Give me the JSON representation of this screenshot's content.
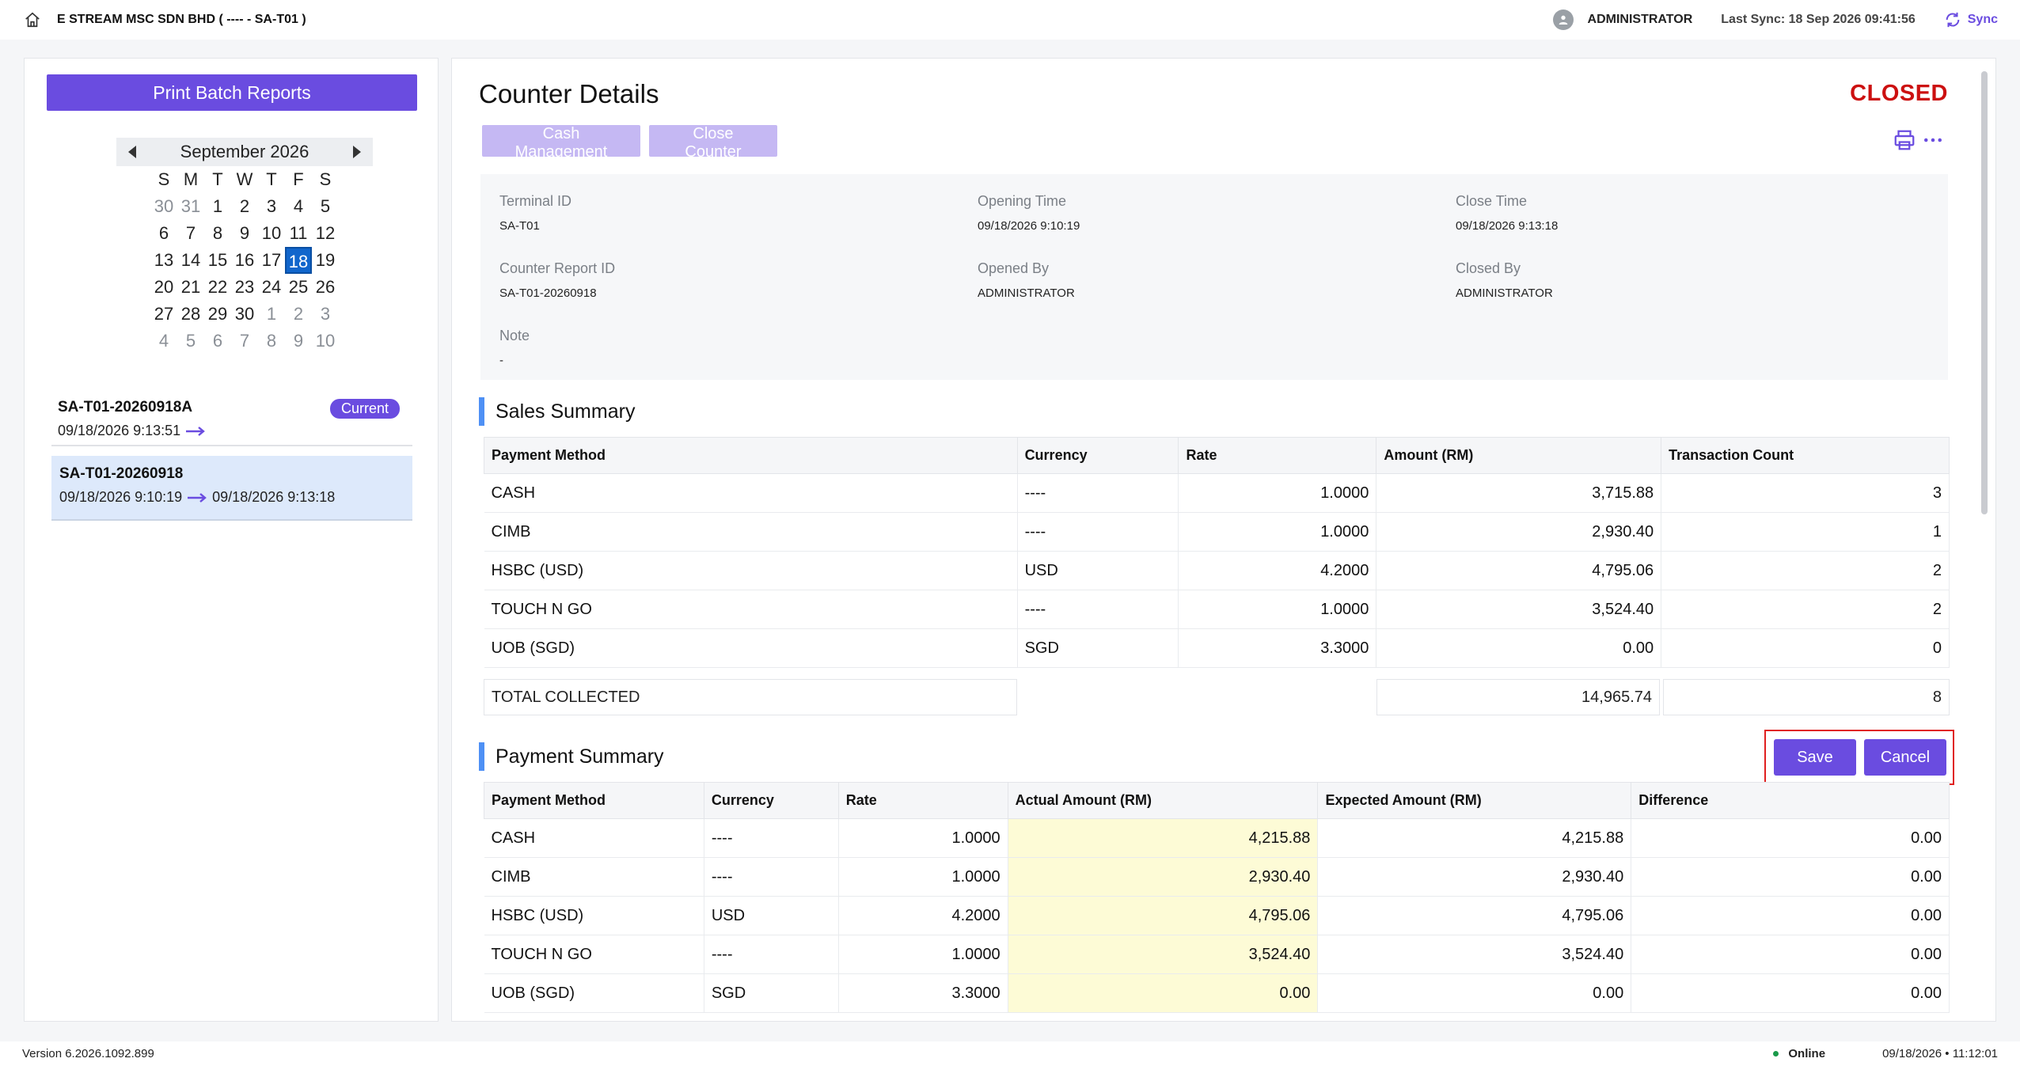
{
  "header": {
    "company": "E STREAM MSC SDN BHD ( ---- - SA-T01 )",
    "user": "ADMINISTRATOR",
    "last_sync": "Last Sync: 18 Sep 2026 09:41:56",
    "sync_label": "Sync"
  },
  "sidebar": {
    "print_batch_label": "Print Batch Reports",
    "calendar": {
      "month": "September 2026",
      "weekdays": [
        "S",
        "M",
        "T",
        "W",
        "T",
        "F",
        "S"
      ],
      "days": [
        [
          "30",
          "31",
          "1",
          "2",
          "3",
          "4",
          "5"
        ],
        [
          "6",
          "7",
          "8",
          "9",
          "10",
          "11",
          "12"
        ],
        [
          "13",
          "14",
          "15",
          "16",
          "17",
          "18",
          "19"
        ],
        [
          "20",
          "21",
          "22",
          "23",
          "24",
          "25",
          "26"
        ],
        [
          "27",
          "28",
          "29",
          "30",
          "1",
          "2",
          "3"
        ],
        [
          "4",
          "5",
          "6",
          "7",
          "8",
          "9",
          "10"
        ]
      ],
      "selected_day": "18"
    },
    "reports": [
      {
        "id": "SA-T01-20260918A",
        "start": "09/18/2026 9:13:51",
        "end": "",
        "badge": "Current"
      },
      {
        "id": "SA-T01-20260918",
        "start": "09/18/2026 9:10:19",
        "end": "09/18/2026 9:13:18",
        "badge": ""
      }
    ]
  },
  "main": {
    "title": "Counter Details",
    "status": "CLOSED",
    "cash_mgmt_label": "Cash Management",
    "close_counter_label": "Close Counter",
    "info": {
      "terminal_id_label": "Terminal ID",
      "terminal_id": "SA-T01",
      "opening_time_label": "Opening Time",
      "opening_time": "09/18/2026 9:10:19",
      "close_time_label": "Close Time",
      "close_time": "09/18/2026 9:13:18",
      "report_id_label": "Counter Report ID",
      "report_id": "SA-T01-20260918",
      "opened_by_label": "Opened By",
      "opened_by": "ADMINISTRATOR",
      "closed_by_label": "Closed By",
      "closed_by": "ADMINISTRATOR",
      "note_label": "Note",
      "note": "-"
    },
    "sales_summary": {
      "title": "Sales Summary",
      "headers": [
        "Payment Method",
        "Currency",
        "Rate",
        "Amount (RM)",
        "Transaction Count"
      ],
      "rows": [
        [
          "CASH",
          "----",
          "1.0000",
          "3,715.88",
          "3"
        ],
        [
          "CIMB",
          "----",
          "1.0000",
          "2,930.40",
          "1"
        ],
        [
          "HSBC (USD)",
          "USD",
          "4.2000",
          "4,795.06",
          "2"
        ],
        [
          "TOUCH N GO",
          "----",
          "1.0000",
          "3,524.40",
          "2"
        ],
        [
          "UOB (SGD)",
          "SGD",
          "3.3000",
          "0.00",
          "0"
        ]
      ],
      "total_label": "TOTAL COLLECTED",
      "total_amount": "14,965.74",
      "total_count": "8"
    },
    "payment_summary": {
      "title": "Payment Summary",
      "save_label": "Save",
      "cancel_label": "Cancel",
      "headers": [
        "Payment Method",
        "Currency",
        "Rate",
        "Actual Amount (RM)",
        "Expected Amount (RM)",
        "Difference"
      ],
      "rows": [
        [
          "CASH",
          "----",
          "1.0000",
          "4,215.88",
          "4,215.88",
          "0.00"
        ],
        [
          "CIMB",
          "----",
          "1.0000",
          "2,930.40",
          "2,930.40",
          "0.00"
        ],
        [
          "HSBC (USD)",
          "USD",
          "4.2000",
          "4,795.06",
          "4,795.06",
          "0.00"
        ],
        [
          "TOUCH N GO",
          "----",
          "1.0000",
          "3,524.40",
          "3,524.40",
          "0.00"
        ],
        [
          "UOB (SGD)",
          "SGD",
          "3.3000",
          "0.00",
          "0.00",
          "0.00"
        ]
      ]
    }
  },
  "footer": {
    "version": "Version 6.2026.1092.899",
    "status": "Online",
    "datetime": "09/18/2026 • 11:12:01"
  },
  "colors": {
    "accent": "#6a4ce0",
    "closed": "#cc1010",
    "selected_day": "#1166cc",
    "highlight": "#fdfbd6"
  }
}
